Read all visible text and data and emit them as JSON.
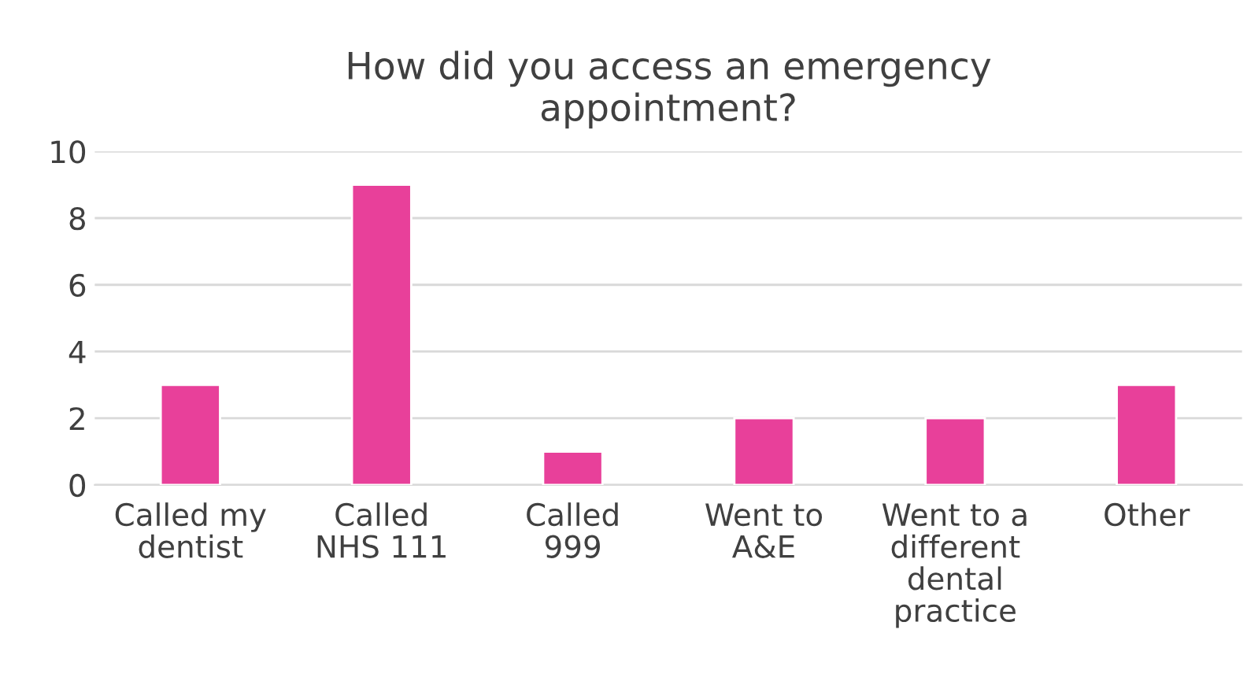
{
  "chart_data": {
    "type": "bar",
    "title": "How did you access an emergency\nappointment?",
    "categories": [
      "Called my\ndentist",
      "Called\nNHS 111",
      "Called\n999",
      "Went to\nA&E",
      "Went to a\ndifferent\ndental\npractice",
      "Other"
    ],
    "values": [
      3,
      9,
      1,
      2,
      2,
      3
    ],
    "color": "#e8409a",
    "ylim": [
      0,
      10
    ],
    "yticks": [
      0,
      2,
      4,
      6,
      8,
      10
    ],
    "grid": "y",
    "legend": false
  }
}
